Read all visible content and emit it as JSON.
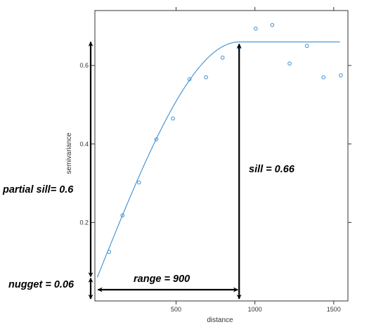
{
  "chart_data": {
    "type": "scatter",
    "xlabel": "distance",
    "ylabel": "semivariance",
    "xlim": [
      -15,
      1590
    ],
    "ylim": [
      0,
      0.74
    ],
    "x_ticks": [
      500,
      1000,
      1500
    ],
    "y_ticks": [
      0.2,
      0.4,
      0.6
    ],
    "grid": false,
    "colors": {
      "series": "#3a8fd6",
      "annotation": "#000000",
      "axis": "#333333"
    },
    "series": [
      {
        "type": "scatter",
        "points": [
          {
            "x": 75,
            "y": 0.125
          },
          {
            "x": 160,
            "y": 0.218
          },
          {
            "x": 265,
            "y": 0.302
          },
          {
            "x": 375,
            "y": 0.412
          },
          {
            "x": 480,
            "y": 0.465
          },
          {
            "x": 585,
            "y": 0.565
          },
          {
            "x": 690,
            "y": 0.57
          },
          {
            "x": 795,
            "y": 0.62
          },
          {
            "x": 900,
            "y": 0.646
          },
          {
            "x": 1005,
            "y": 0.694
          },
          {
            "x": 1110,
            "y": 0.703
          },
          {
            "x": 1220,
            "y": 0.605
          },
          {
            "x": 1330,
            "y": 0.65
          },
          {
            "x": 1435,
            "y": 0.57
          },
          {
            "x": 1545,
            "y": 0.575
          }
        ]
      },
      {
        "type": "line",
        "model": "spherical",
        "nugget": 0.06,
        "partial_sill": 0.6,
        "range": 900,
        "x_end": 1545
      }
    ],
    "annotations": {
      "partial_sill": "partial sill= 0.6",
      "nugget": "nugget = 0.06",
      "range": "range = 900",
      "sill": "sill = 0.66"
    }
  }
}
